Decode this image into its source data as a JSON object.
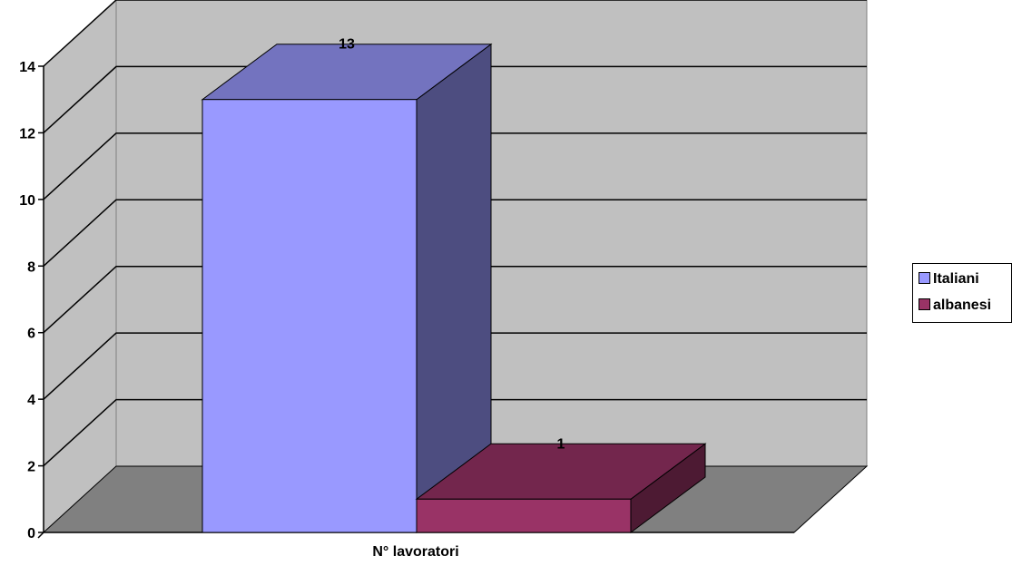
{
  "chart_data": {
    "type": "bar",
    "title": "",
    "xlabel": "N° lavoratori",
    "ylabel": "",
    "ylim": [
      0,
      14
    ],
    "yticks": [
      0,
      2,
      4,
      6,
      8,
      10,
      12,
      14
    ],
    "categories": [
      "N° lavoratori"
    ],
    "series": [
      {
        "name": "Italiani",
        "values": [
          13
        ],
        "data_label": "13",
        "color": "#9999ff"
      },
      {
        "name": "albanesi",
        "values": [
          1
        ],
        "data_label": "1",
        "color": "#993366"
      }
    ],
    "grid": true,
    "legend": "right"
  }
}
